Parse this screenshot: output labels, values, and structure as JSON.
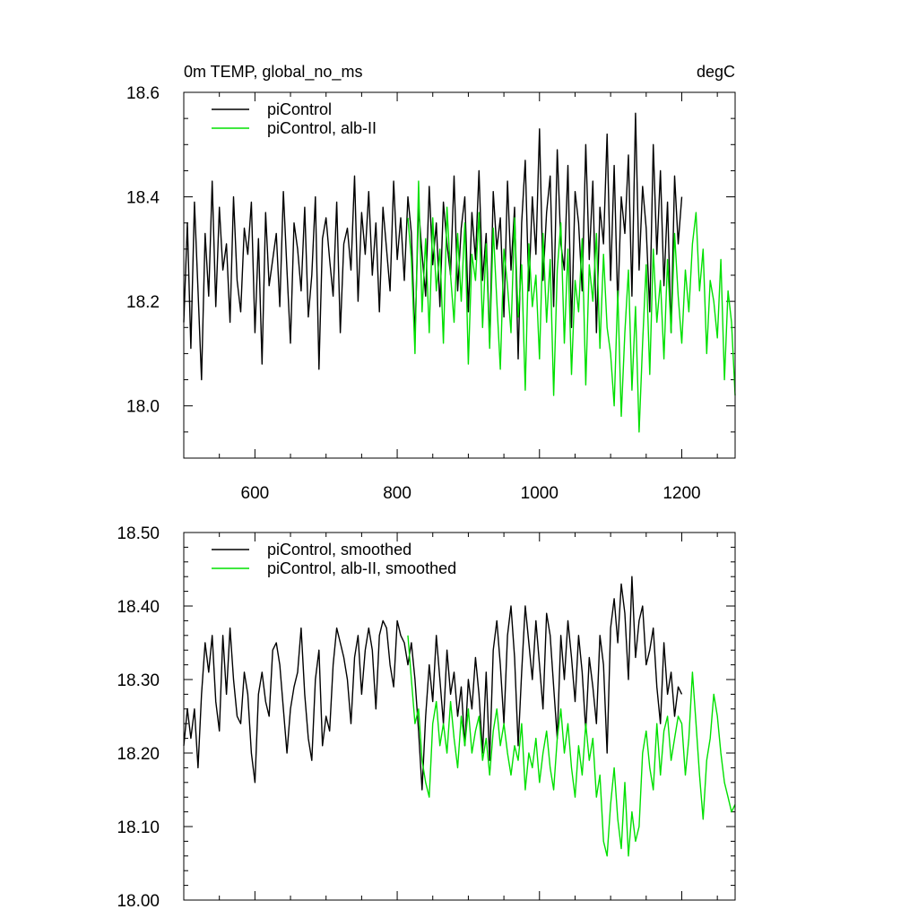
{
  "chart_data": [
    {
      "type": "line",
      "title": "0m TEMP, global_no_ms",
      "units": "degC",
      "xlim": [
        500,
        1275
      ],
      "ylim": [
        17.9,
        18.6
      ],
      "xticks": [
        600,
        800,
        1000,
        1200
      ],
      "xtick_labels": [
        "600",
        "800",
        "1000",
        "1200"
      ],
      "xticks_minor": [
        500,
        550,
        650,
        700,
        750,
        850,
        900,
        950,
        1050,
        1100,
        1150,
        1250
      ],
      "yticks": [
        18.0,
        18.2,
        18.4,
        18.6
      ],
      "ytick_labels": [
        "18.0",
        "18.2",
        "18.4",
        "18.6"
      ],
      "yticks_minor": [
        17.9,
        17.95,
        18.05,
        18.1,
        18.15,
        18.25,
        18.3,
        18.35,
        18.45,
        18.5,
        18.55
      ],
      "legend_location": "top-left",
      "grid": false,
      "series": [
        {
          "name": "piControl",
          "color": "#000000",
          "x": [
            500,
            505,
            510,
            515,
            520,
            525,
            530,
            535,
            540,
            545,
            550,
            555,
            560,
            565,
            570,
            575,
            580,
            585,
            590,
            595,
            600,
            605,
            610,
            615,
            620,
            625,
            630,
            635,
            640,
            645,
            650,
            655,
            660,
            665,
            670,
            675,
            680,
            685,
            690,
            695,
            700,
            705,
            710,
            715,
            720,
            725,
            730,
            735,
            740,
            745,
            750,
            755,
            760,
            765,
            770,
            775,
            780,
            785,
            790,
            795,
            800,
            805,
            810,
            815,
            820,
            825,
            830,
            835,
            840,
            845,
            850,
            855,
            860,
            865,
            870,
            875,
            880,
            885,
            890,
            895,
            900,
            905,
            910,
            915,
            920,
            925,
            930,
            935,
            940,
            945,
            950,
            955,
            960,
            965,
            970,
            975,
            980,
            985,
            990,
            995,
            1000,
            1005,
            1010,
            1015,
            1020,
            1025,
            1030,
            1035,
            1040,
            1045,
            1050,
            1055,
            1060,
            1065,
            1070,
            1075,
            1080,
            1085,
            1090,
            1095,
            1100,
            1105,
            1110,
            1115,
            1120,
            1125,
            1130,
            1135,
            1140,
            1145,
            1150,
            1155,
            1160,
            1165,
            1170,
            1175,
            1180,
            1185,
            1190,
            1195,
            1200
          ],
          "y": [
            18.16,
            18.35,
            18.11,
            18.39,
            18.22,
            18.05,
            18.33,
            18.21,
            18.43,
            18.19,
            18.38,
            18.26,
            18.31,
            18.16,
            18.4,
            18.24,
            18.18,
            18.34,
            18.29,
            18.39,
            18.14,
            18.32,
            18.08,
            18.37,
            18.23,
            18.28,
            18.33,
            18.19,
            18.41,
            18.26,
            18.12,
            18.35,
            18.3,
            18.22,
            18.38,
            18.17,
            18.25,
            18.4,
            18.07,
            18.32,
            18.36,
            18.28,
            18.21,
            18.39,
            18.14,
            18.31,
            18.34,
            18.26,
            18.44,
            18.2,
            18.37,
            18.29,
            18.41,
            18.25,
            18.35,
            18.18,
            18.38,
            18.3,
            18.22,
            18.43,
            18.28,
            18.36,
            18.24,
            18.4,
            18.33,
            18.13,
            18.38,
            18.29,
            18.21,
            18.42,
            18.27,
            18.35,
            18.19,
            18.39,
            18.31,
            18.25,
            18.44,
            18.22,
            18.34,
            18.4,
            18.18,
            18.37,
            18.28,
            18.45,
            18.24,
            18.33,
            18.12,
            18.41,
            18.3,
            18.36,
            18.17,
            18.43,
            18.26,
            18.38,
            18.09,
            18.35,
            18.47,
            18.22,
            18.4,
            18.29,
            18.53,
            18.24,
            18.37,
            18.44,
            18.19,
            18.49,
            18.31,
            18.26,
            18.46,
            18.15,
            18.41,
            18.35,
            18.22,
            18.5,
            18.28,
            18.43,
            18.14,
            18.38,
            18.31,
            18.52,
            18.24,
            18.46,
            18.19,
            18.4,
            18.33,
            18.48,
            18.21,
            18.56,
            18.26,
            18.42,
            18.34,
            18.18,
            18.5,
            18.29,
            18.45,
            18.23,
            18.39,
            18.14,
            18.44,
            18.31,
            18.4
          ]
        },
        {
          "name": "piControl, alb-II",
          "color": "#00e000",
          "x": [
            815,
            820,
            825,
            830,
            835,
            840,
            845,
            850,
            855,
            860,
            865,
            870,
            875,
            880,
            885,
            890,
            895,
            900,
            905,
            910,
            915,
            920,
            925,
            930,
            935,
            940,
            945,
            950,
            955,
            960,
            965,
            970,
            975,
            980,
            985,
            990,
            995,
            1000,
            1005,
            1010,
            1015,
            1020,
            1025,
            1030,
            1035,
            1040,
            1045,
            1050,
            1055,
            1060,
            1065,
            1070,
            1075,
            1080,
            1085,
            1090,
            1095,
            1100,
            1105,
            1110,
            1115,
            1120,
            1125,
            1130,
            1135,
            1140,
            1145,
            1150,
            1155,
            1160,
            1165,
            1170,
            1175,
            1180,
            1185,
            1190,
            1195,
            1200,
            1205,
            1210,
            1215,
            1220,
            1225,
            1230,
            1235,
            1240,
            1245,
            1250,
            1255,
            1260,
            1265,
            1270,
            1275
          ],
          "y": [
            18.36,
            18.28,
            18.1,
            18.43,
            18.18,
            18.32,
            18.14,
            18.36,
            18.22,
            18.3,
            18.12,
            18.38,
            18.25,
            18.16,
            18.33,
            18.2,
            18.35,
            18.08,
            18.29,
            18.24,
            18.37,
            18.15,
            18.31,
            18.11,
            18.34,
            18.2,
            18.07,
            18.3,
            18.23,
            18.14,
            18.36,
            18.17,
            18.27,
            18.03,
            18.31,
            18.19,
            18.25,
            18.09,
            18.33,
            18.16,
            18.28,
            18.02,
            18.26,
            18.35,
            18.12,
            18.3,
            18.06,
            18.24,
            18.18,
            18.32,
            18.04,
            18.27,
            18.2,
            18.33,
            18.11,
            18.29,
            18.15,
            18.1,
            18.0,
            18.22,
            17.98,
            18.14,
            18.26,
            18.03,
            18.19,
            17.95,
            18.12,
            18.27,
            18.06,
            18.3,
            18.16,
            18.24,
            18.09,
            18.28,
            18.14,
            18.33,
            18.21,
            18.12,
            18.26,
            18.18,
            18.31,
            18.37,
            18.22,
            18.3,
            18.1,
            18.24,
            18.2,
            18.13,
            18.28,
            18.05,
            18.22,
            18.16,
            18.02
          ]
        }
      ]
    },
    {
      "type": "line",
      "xlim": [
        500,
        1275
      ],
      "ylim": [
        18.0,
        18.5
      ],
      "xticks": [
        600,
        800,
        1000,
        1200
      ],
      "xticks_minor": [
        500,
        550,
        650,
        700,
        750,
        850,
        900,
        950,
        1050,
        1100,
        1150,
        1250
      ],
      "yticks": [
        18.0,
        18.1,
        18.2,
        18.3,
        18.4,
        18.5
      ],
      "ytick_labels": [
        "18.00",
        "18.10",
        "18.20",
        "18.30",
        "18.40",
        "18.50"
      ],
      "yticks_minor": [
        18.02,
        18.04,
        18.06,
        18.08,
        18.12,
        18.14,
        18.16,
        18.18,
        18.22,
        18.24,
        18.26,
        18.28,
        18.32,
        18.34,
        18.36,
        18.38,
        18.42,
        18.44,
        18.46,
        18.48
      ],
      "legend_location": "top-left",
      "grid": false,
      "series": [
        {
          "name": "piControl, smoothed",
          "color": "#000000",
          "x": [
            500,
            505,
            510,
            515,
            520,
            525,
            530,
            535,
            540,
            545,
            550,
            555,
            560,
            565,
            570,
            575,
            580,
            585,
            590,
            595,
            600,
            605,
            610,
            615,
            620,
            625,
            630,
            635,
            640,
            645,
            650,
            655,
            660,
            665,
            670,
            675,
            680,
            685,
            690,
            695,
            700,
            705,
            710,
            715,
            720,
            725,
            730,
            735,
            740,
            745,
            750,
            755,
            760,
            765,
            770,
            775,
            780,
            785,
            790,
            795,
            800,
            805,
            810,
            815,
            820,
            825,
            830,
            835,
            840,
            845,
            850,
            855,
            860,
            865,
            870,
            875,
            880,
            885,
            890,
            895,
            900,
            905,
            910,
            915,
            920,
            925,
            930,
            935,
            940,
            945,
            950,
            955,
            960,
            965,
            970,
            975,
            980,
            985,
            990,
            995,
            1000,
            1005,
            1010,
            1015,
            1020,
            1025,
            1030,
            1035,
            1040,
            1045,
            1050,
            1055,
            1060,
            1065,
            1070,
            1075,
            1080,
            1085,
            1090,
            1095,
            1100,
            1105,
            1110,
            1115,
            1120,
            1125,
            1130,
            1135,
            1140,
            1145,
            1150,
            1155,
            1160,
            1165,
            1170,
            1175,
            1180,
            1185,
            1190,
            1195,
            1200
          ],
          "y": [
            18.21,
            18.26,
            18.22,
            18.26,
            18.18,
            18.28,
            18.35,
            18.31,
            18.36,
            18.27,
            18.23,
            18.36,
            18.28,
            18.37,
            18.3,
            18.25,
            18.24,
            18.31,
            18.28,
            18.2,
            18.16,
            18.28,
            18.31,
            18.27,
            18.25,
            18.34,
            18.35,
            18.32,
            18.26,
            18.2,
            18.26,
            18.29,
            18.31,
            18.37,
            18.28,
            18.22,
            18.19,
            18.3,
            18.34,
            18.21,
            18.25,
            18.23,
            18.32,
            18.37,
            18.35,
            18.33,
            18.3,
            18.24,
            18.33,
            18.36,
            18.28,
            18.34,
            18.37,
            18.34,
            18.26,
            18.36,
            18.38,
            18.37,
            18.32,
            18.29,
            18.38,
            18.36,
            18.35,
            18.32,
            18.35,
            18.3,
            18.23,
            18.15,
            18.25,
            18.32,
            18.27,
            18.36,
            18.3,
            18.24,
            18.34,
            18.28,
            18.31,
            18.25,
            18.29,
            18.21,
            18.3,
            18.26,
            18.33,
            18.28,
            18.2,
            18.31,
            18.19,
            18.34,
            18.38,
            18.32,
            18.24,
            18.36,
            18.4,
            18.33,
            18.21,
            18.31,
            18.4,
            18.35,
            18.3,
            18.38,
            18.32,
            18.26,
            18.39,
            18.36,
            18.29,
            18.22,
            18.36,
            18.3,
            18.38,
            18.33,
            18.27,
            18.36,
            18.31,
            18.23,
            18.33,
            18.29,
            18.24,
            18.36,
            18.32,
            18.2,
            18.37,
            18.41,
            18.35,
            18.43,
            18.39,
            18.3,
            18.44,
            18.33,
            18.38,
            18.4,
            18.32,
            18.34,
            18.37,
            18.29,
            18.24,
            18.35,
            18.28,
            18.31,
            18.25,
            18.29,
            18.28
          ]
        },
        {
          "name": "piControl, alb-II, smoothed",
          "color": "#00e000",
          "x": [
            815,
            820,
            825,
            830,
            835,
            840,
            845,
            850,
            855,
            860,
            865,
            870,
            875,
            880,
            885,
            890,
            895,
            900,
            905,
            910,
            915,
            920,
            925,
            930,
            935,
            940,
            945,
            950,
            955,
            960,
            965,
            970,
            975,
            980,
            985,
            990,
            995,
            1000,
            1005,
            1010,
            1015,
            1020,
            1025,
            1030,
            1035,
            1040,
            1045,
            1050,
            1055,
            1060,
            1065,
            1070,
            1075,
            1080,
            1085,
            1090,
            1095,
            1100,
            1105,
            1110,
            1115,
            1120,
            1125,
            1130,
            1135,
            1140,
            1145,
            1150,
            1155,
            1160,
            1165,
            1170,
            1175,
            1180,
            1185,
            1190,
            1195,
            1200,
            1205,
            1210,
            1215,
            1220,
            1225,
            1230,
            1235,
            1240,
            1245,
            1250,
            1255,
            1260,
            1265,
            1270,
            1275
          ],
          "y": [
            18.36,
            18.3,
            18.24,
            18.26,
            18.19,
            18.16,
            18.14,
            18.24,
            18.27,
            18.21,
            18.24,
            18.2,
            18.27,
            18.22,
            18.18,
            18.25,
            18.21,
            18.26,
            18.2,
            18.23,
            18.25,
            18.19,
            18.22,
            18.17,
            18.23,
            18.26,
            18.21,
            18.24,
            18.2,
            18.17,
            18.21,
            18.19,
            18.24,
            18.15,
            18.2,
            18.18,
            18.22,
            18.16,
            18.2,
            18.23,
            18.18,
            18.15,
            18.22,
            18.26,
            18.2,
            18.24,
            18.18,
            18.14,
            18.21,
            18.17,
            18.24,
            18.19,
            18.22,
            18.14,
            18.17,
            18.08,
            18.06,
            18.13,
            18.18,
            18.11,
            18.07,
            18.16,
            18.06,
            18.12,
            18.08,
            18.1,
            18.2,
            18.23,
            18.18,
            18.15,
            18.24,
            18.17,
            18.23,
            18.25,
            18.19,
            18.22,
            18.25,
            18.24,
            18.17,
            18.22,
            18.31,
            18.24,
            18.17,
            18.11,
            18.19,
            18.22,
            18.28,
            18.25,
            18.2,
            18.16,
            18.14,
            18.12,
            18.13
          ]
        }
      ]
    }
  ]
}
